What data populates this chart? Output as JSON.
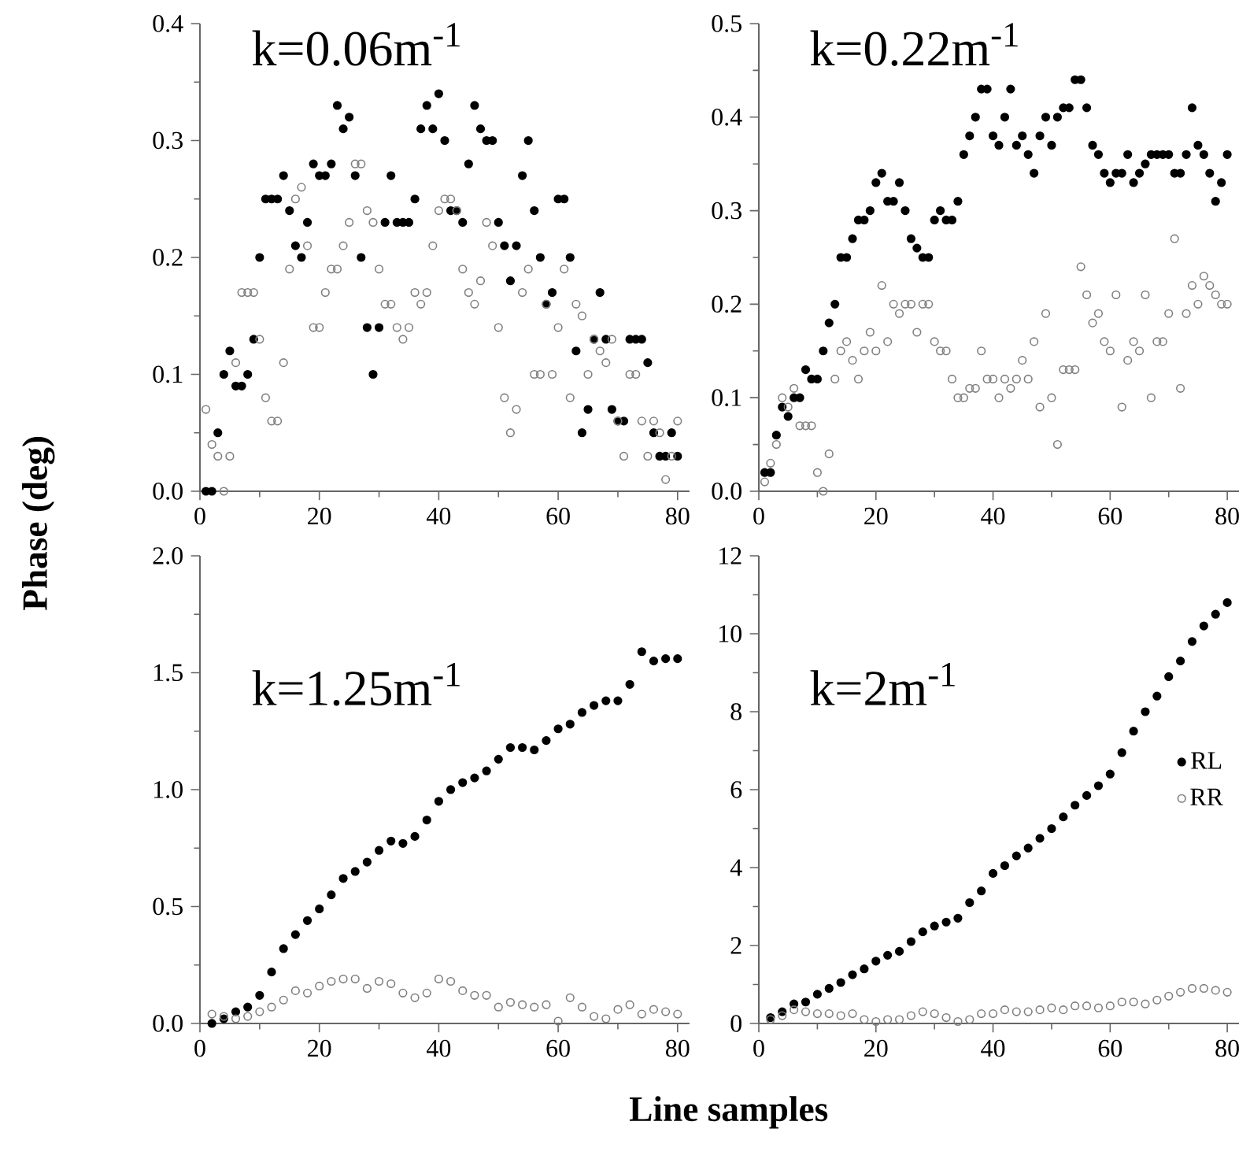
{
  "chart_data": [
    {
      "type": "scatter",
      "title": "k=0.06m$^{-1}$",
      "marker": "circle",
      "xlim": [
        0,
        82
      ],
      "xticks": [
        0,
        20,
        40,
        60,
        80
      ],
      "ylim": [
        0,
        0.4
      ],
      "yticks": [
        {
          "value": 0,
          "label": "0.0"
        },
        0.1,
        0.2,
        0.3,
        0.4
      ],
      "series": [
        {
          "color": "#000000",
          "x": [
            1,
            2,
            3,
            4,
            5,
            6,
            7,
            8,
            9,
            10,
            11,
            12,
            13,
            14,
            15,
            16,
            17,
            18,
            19,
            20,
            21,
            22,
            23,
            24,
            25,
            26,
            27,
            28,
            29,
            30,
            31,
            32,
            33,
            34,
            35,
            36,
            37,
            38,
            39,
            40,
            41,
            42,
            43,
            44,
            45,
            46,
            47,
            48,
            49,
            50,
            51,
            52,
            53,
            54,
            55,
            56,
            57,
            58,
            59,
            60,
            61,
            62,
            63,
            64,
            65,
            66,
            67,
            68,
            69,
            70,
            71,
            72,
            73,
            74,
            75,
            76,
            77,
            78,
            79,
            80
          ],
          "values": [
            0,
            0,
            0.05,
            0.1,
            0.12,
            0.09,
            0.09,
            0.1,
            0.13,
            0.2,
            0.25,
            0.25,
            0.25,
            0.27,
            0.24,
            0.21,
            0.2,
            0.23,
            0.28,
            0.27,
            0.27,
            0.28,
            0.33,
            0.31,
            0.32,
            0.27,
            0.2,
            0.14,
            0.1,
            0.14,
            0.23,
            0.27,
            0.23,
            0.23,
            0.23,
            0.25,
            0.31,
            0.33,
            0.31,
            0.34,
            0.3,
            0.24,
            0.24,
            0.23,
            0.28,
            0.33,
            0.31,
            0.3,
            0.3,
            0.23,
            0.21,
            0.18,
            0.21,
            0.27,
            0.3,
            0.24,
            0.2,
            0.16,
            0.17,
            0.25,
            0.25,
            0.2,
            0.12,
            0.05,
            0.07,
            0.13,
            0.17,
            0.13,
            0.07,
            0.06,
            0.06,
            0.13,
            0.13,
            0.13,
            0.11,
            0.05,
            0.03,
            0.03,
            0.05,
            0.03
          ]
        },
        {
          "color": "#808080",
          "x": [
            1,
            2,
            3,
            4,
            5,
            6,
            7,
            8,
            9,
            10,
            11,
            12,
            13,
            14,
            15,
            16,
            17,
            18,
            19,
            20,
            21,
            22,
            23,
            24,
            25,
            26,
            27,
            28,
            29,
            30,
            31,
            32,
            33,
            34,
            35,
            36,
            37,
            38,
            39,
            40,
            41,
            42,
            43,
            44,
            45,
            46,
            47,
            48,
            49,
            50,
            51,
            52,
            53,
            54,
            55,
            56,
            57,
            58,
            59,
            60,
            61,
            62,
            63,
            64,
            65,
            66,
            67,
            68,
            69,
            70,
            71,
            72,
            73,
            74,
            75,
            76,
            77,
            78,
            79,
            80
          ],
          "values": [
            0.07,
            0.04,
            0.03,
            0,
            0.03,
            0.11,
            0.17,
            0.17,
            0.17,
            0.13,
            0.08,
            0.06,
            0.06,
            0.11,
            0.19,
            0.25,
            0.26,
            0.21,
            0.14,
            0.14,
            0.17,
            0.19,
            0.19,
            0.21,
            0.23,
            0.28,
            0.28,
            0.24,
            0.23,
            0.19,
            0.16,
            0.16,
            0.14,
            0.13,
            0.14,
            0.17,
            0.16,
            0.17,
            0.21,
            0.24,
            0.25,
            0.25,
            0.24,
            0.19,
            0.17,
            0.16,
            0.18,
            0.23,
            0.21,
            0.14,
            0.08,
            0.05,
            0.07,
            0.17,
            0.19,
            0.1,
            0.1,
            0.16,
            0.1,
            0.14,
            0.19,
            0.08,
            0.16,
            0.15,
            0.1,
            0.13,
            0.12,
            0.11,
            0.13,
            0.06,
            0.03,
            0.1,
            0.1,
            0.06,
            0.03,
            0.06,
            0.05,
            0.01,
            0.03,
            0.06
          ]
        }
      ]
    },
    {
      "type": "scatter",
      "title": "k=0.22m$^{-1}$",
      "marker": "circle",
      "xlim": [
        0,
        82
      ],
      "xticks": [
        0,
        20,
        40,
        60,
        80
      ],
      "ylim": [
        0,
        0.5
      ],
      "yticks": [
        {
          "value": 0,
          "label": "0.0"
        },
        0.1,
        0.2,
        0.3,
        0.4,
        0.5
      ],
      "series": [
        {
          "color": "#000000",
          "x": [
            1,
            2,
            3,
            4,
            5,
            6,
            7,
            8,
            9,
            10,
            11,
            12,
            13,
            14,
            15,
            16,
            17,
            18,
            19,
            20,
            21,
            22,
            23,
            24,
            25,
            26,
            27,
            28,
            29,
            30,
            31,
            32,
            33,
            34,
            35,
            36,
            37,
            38,
            39,
            40,
            41,
            42,
            43,
            44,
            45,
            46,
            47,
            48,
            49,
            50,
            51,
            52,
            53,
            54,
            55,
            56,
            57,
            58,
            59,
            60,
            61,
            62,
            63,
            64,
            65,
            66,
            67,
            68,
            69,
            70,
            71,
            72,
            73,
            74,
            75,
            76,
            77,
            78,
            79,
            80
          ],
          "values": [
            0.02,
            0.02,
            0.06,
            0.09,
            0.08,
            0.1,
            0.1,
            0.13,
            0.12,
            0.12,
            0.15,
            0.18,
            0.2,
            0.25,
            0.25,
            0.27,
            0.29,
            0.29,
            0.3,
            0.33,
            0.34,
            0.31,
            0.31,
            0.33,
            0.3,
            0.27,
            0.26,
            0.25,
            0.25,
            0.29,
            0.3,
            0.29,
            0.29,
            0.31,
            0.36,
            0.38,
            0.4,
            0.43,
            0.43,
            0.38,
            0.37,
            0.4,
            0.43,
            0.37,
            0.38,
            0.36,
            0.34,
            0.38,
            0.4,
            0.37,
            0.4,
            0.41,
            0.41,
            0.44,
            0.44,
            0.41,
            0.37,
            0.36,
            0.34,
            0.33,
            0.34,
            0.34,
            0.36,
            0.33,
            0.34,
            0.35,
            0.36,
            0.36,
            0.36,
            0.36,
            0.34,
            0.34,
            0.36,
            0.41,
            0.37,
            0.36,
            0.34,
            0.31,
            0.33,
            0.36
          ]
        },
        {
          "color": "#808080",
          "x": [
            1,
            2,
            3,
            4,
            5,
            6,
            7,
            8,
            9,
            10,
            11,
            12,
            13,
            14,
            15,
            16,
            17,
            18,
            19,
            20,
            21,
            22,
            23,
            24,
            25,
            26,
            27,
            28,
            29,
            30,
            31,
            32,
            33,
            34,
            35,
            36,
            37,
            38,
            39,
            40,
            41,
            42,
            43,
            44,
            45,
            46,
            47,
            48,
            49,
            50,
            51,
            52,
            53,
            54,
            55,
            56,
            57,
            58,
            59,
            60,
            61,
            62,
            63,
            64,
            65,
            66,
            67,
            68,
            69,
            70,
            71,
            72,
            73,
            74,
            75,
            76,
            77,
            78,
            79,
            80
          ],
          "values": [
            0.01,
            0.03,
            0.05,
            0.1,
            0.09,
            0.11,
            0.07,
            0.07,
            0.07,
            0.02,
            0,
            0.04,
            0.12,
            0.15,
            0.16,
            0.14,
            0.12,
            0.15,
            0.17,
            0.15,
            0.22,
            0.16,
            0.2,
            0.19,
            0.2,
            0.2,
            0.17,
            0.2,
            0.2,
            0.16,
            0.15,
            0.15,
            0.12,
            0.1,
            0.1,
            0.11,
            0.11,
            0.15,
            0.12,
            0.12,
            0.1,
            0.12,
            0.11,
            0.12,
            0.14,
            0.12,
            0.16,
            0.09,
            0.19,
            0.1,
            0.05,
            0.13,
            0.13,
            0.13,
            0.24,
            0.21,
            0.18,
            0.19,
            0.16,
            0.15,
            0.21,
            0.09,
            0.14,
            0.16,
            0.15,
            0.21,
            0.1,
            0.16,
            0.16,
            0.19,
            0.27,
            0.11,
            0.19,
            0.22,
            0.2,
            0.23,
            0.22,
            0.21,
            0.2,
            0.2
          ]
        }
      ]
    },
    {
      "type": "scatter",
      "title": "k=1.25m$^{-1}$",
      "xlabel": "Line samples",
      "ylabel": "Phase (deg)",
      "marker": "circle",
      "xlim": [
        0,
        82
      ],
      "xticks": [
        0,
        20,
        40,
        60,
        80
      ],
      "ylim": [
        0,
        2
      ],
      "yticks": [
        {
          "value": 0,
          "label": "0.0"
        },
        0.5,
        {
          "value": 1,
          "label": "1.0"
        },
        1.5,
        {
          "value": 2,
          "label": "2.0"
        }
      ],
      "series": [
        {
          "color": "#000000",
          "x": [
            2,
            4,
            6,
            8,
            10,
            12,
            14,
            16,
            18,
            20,
            22,
            24,
            26,
            28,
            30,
            32,
            34,
            36,
            38,
            40,
            42,
            44,
            46,
            48,
            50,
            52,
            54,
            56,
            58,
            60,
            62,
            64,
            66,
            68,
            70,
            72,
            74,
            76,
            78,
            80
          ],
          "values": [
            0,
            0.02,
            0.05,
            0.07,
            0.12,
            0.22,
            0.32,
            0.38,
            0.44,
            0.49,
            0.55,
            0.62,
            0.65,
            0.69,
            0.74,
            0.78,
            0.77,
            0.8,
            0.87,
            0.95,
            1.0,
            1.03,
            1.05,
            1.08,
            1.13,
            1.18,
            1.18,
            1.17,
            1.21,
            1.26,
            1.28,
            1.33,
            1.36,
            1.38,
            1.38,
            1.45,
            1.59,
            1.55,
            1.56,
            1.56
          ]
        },
        {
          "color": "#808080",
          "x": [
            2,
            4,
            6,
            8,
            10,
            12,
            14,
            16,
            18,
            20,
            22,
            24,
            26,
            28,
            30,
            32,
            34,
            36,
            38,
            40,
            42,
            44,
            46,
            48,
            50,
            52,
            54,
            56,
            58,
            60,
            62,
            64,
            66,
            68,
            70,
            72,
            74,
            76,
            78,
            80
          ],
          "values": [
            0.04,
            0.03,
            0.02,
            0.03,
            0.05,
            0.07,
            0.1,
            0.14,
            0.13,
            0.16,
            0.18,
            0.19,
            0.19,
            0.15,
            0.18,
            0.17,
            0.13,
            0.11,
            0.13,
            0.19,
            0.18,
            0.14,
            0.12,
            0.12,
            0.07,
            0.09,
            0.08,
            0.07,
            0.08,
            0.01,
            0.11,
            0.07,
            0.03,
            0.02,
            0.06,
            0.08,
            0.04,
            0.06,
            0.05,
            0.04
          ]
        }
      ]
    },
    {
      "type": "scatter",
      "title": "k=2m$^{-1}$",
      "marker": "circle",
      "legend": "right",
      "xlim": [
        0,
        82
      ],
      "xticks": [
        0,
        20,
        40,
        60,
        80
      ],
      "ylim": [
        0,
        12
      ],
      "yticks": [
        0,
        2,
        4,
        6,
        8,
        10,
        12
      ],
      "series": [
        {
          "name": "RL",
          "color": "#000000",
          "x": [
            2,
            4,
            6,
            8,
            10,
            12,
            14,
            16,
            18,
            20,
            22,
            24,
            26,
            28,
            30,
            32,
            34,
            36,
            38,
            40,
            42,
            44,
            46,
            48,
            50,
            52,
            54,
            56,
            58,
            60,
            62,
            64,
            66,
            68,
            70,
            72,
            74,
            76,
            78,
            80
          ],
          "values": [
            0.15,
            0.3,
            0.5,
            0.55,
            0.75,
            0.9,
            1.05,
            1.25,
            1.4,
            1.6,
            1.75,
            1.85,
            2.1,
            2.35,
            2.5,
            2.6,
            2.7,
            3.1,
            3.4,
            3.85,
            4.05,
            4.3,
            4.5,
            4.75,
            5.0,
            5.3,
            5.6,
            5.85,
            6.1,
            6.4,
            6.95,
            7.5,
            8.0,
            8.4,
            8.9,
            9.3,
            9.8,
            10.2,
            10.5,
            10.8
          ]
        },
        {
          "name": "RR",
          "color": "#808080",
          "x": [
            2,
            4,
            6,
            8,
            10,
            12,
            14,
            16,
            18,
            20,
            22,
            24,
            26,
            28,
            30,
            32,
            34,
            36,
            38,
            40,
            42,
            44,
            46,
            48,
            50,
            52,
            54,
            56,
            58,
            60,
            62,
            64,
            66,
            68,
            70,
            72,
            74,
            76,
            78,
            80
          ],
          "values": [
            0.1,
            0.2,
            0.35,
            0.3,
            0.25,
            0.25,
            0.2,
            0.25,
            0.1,
            0.05,
            0.1,
            0.1,
            0.2,
            0.3,
            0.25,
            0.15,
            0.05,
            0.1,
            0.25,
            0.25,
            0.35,
            0.3,
            0.3,
            0.35,
            0.4,
            0.35,
            0.45,
            0.45,
            0.4,
            0.45,
            0.55,
            0.55,
            0.5,
            0.6,
            0.7,
            0.8,
            0.9,
            0.9,
            0.85,
            0.8
          ]
        }
      ]
    }
  ]
}
